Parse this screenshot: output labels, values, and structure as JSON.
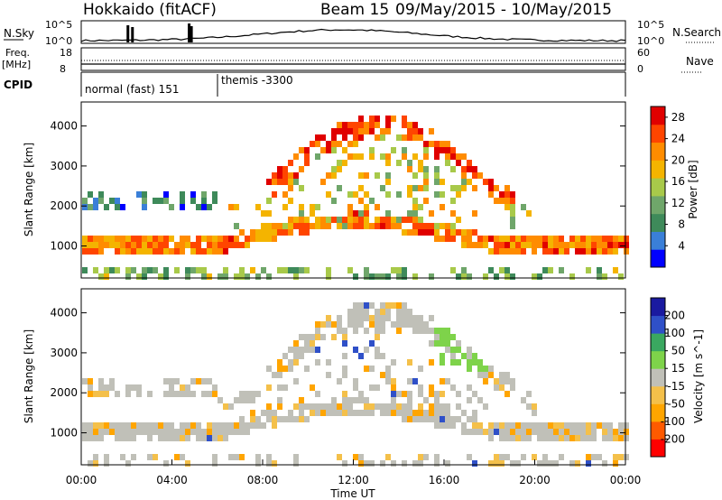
{
  "header": {
    "title": "Hokkaido (fitACF)",
    "beam": "Beam 15",
    "date_range": "09/May/2015 - 10/May/2015"
  },
  "noise_panel": {
    "left_label": "N.Sky",
    "right_label": "N.Search",
    "y_ticks_left": [
      "10^5",
      "10^0"
    ],
    "y_ticks_right": [
      "10^5",
      "10^0"
    ]
  },
  "freq_panel": {
    "left_label_1": "Freq.",
    "left_label_2": "[MHz]",
    "right_label": "Nave",
    "y_ticks_left": [
      "18",
      "8"
    ],
    "y_ticks_right": [
      "60",
      "0"
    ]
  },
  "cpid_panel": {
    "label": "CPID",
    "modes": [
      {
        "text": "normal (fast) 151",
        "start_hour": 0
      },
      {
        "text": "themis -3300",
        "start_hour": 6
      }
    ]
  },
  "time_axis": {
    "label": "Time UT",
    "ticks": [
      "00:00",
      "04:00",
      "08:00",
      "12:00",
      "16:00",
      "20:00",
      "00:00"
    ],
    "range_hours": [
      0,
      24
    ]
  },
  "chart_data": [
    {
      "type": "heatmap",
      "title": "",
      "xlabel": "Time UT",
      "ylabel": "Slant Range [km]",
      "y_ticks": [
        "1000",
        "2000",
        "3000",
        "4000"
      ],
      "ylim": [
        200,
        4600
      ],
      "colorbar": {
        "label": "Power [dB]",
        "ticks": [
          "4",
          "8",
          "12",
          "16",
          "20",
          "24",
          "28"
        ],
        "range": [
          0,
          30
        ],
        "colors": [
          "#0000ff",
          "#3a7fd8",
          "#3e8a5a",
          "#6fa66a",
          "#a8c94a",
          "#f4b400",
          "#ff8c00",
          "#ff4500",
          "#e00000"
        ]
      }
    },
    {
      "type": "heatmap",
      "title": "",
      "xlabel": "Time UT",
      "ylabel": "Slant Range [km]",
      "y_ticks": [
        "1000",
        "2000",
        "3000",
        "4000"
      ],
      "ylim": [
        200,
        4600
      ],
      "colorbar": {
        "label": "Velocity [m s^-1]",
        "ticks": [
          "200",
          "100",
          "50",
          "15",
          "-15",
          "-50",
          "-100",
          "-200"
        ],
        "range": [
          -250,
          250
        ],
        "colors": [
          "#ff0000",
          "#ff5a00",
          "#ffa500",
          "#f4c04a",
          "#c0c0b8",
          "#7ed34a",
          "#3aa860",
          "#2f50c8",
          "#1a1aa0"
        ]
      }
    }
  ]
}
